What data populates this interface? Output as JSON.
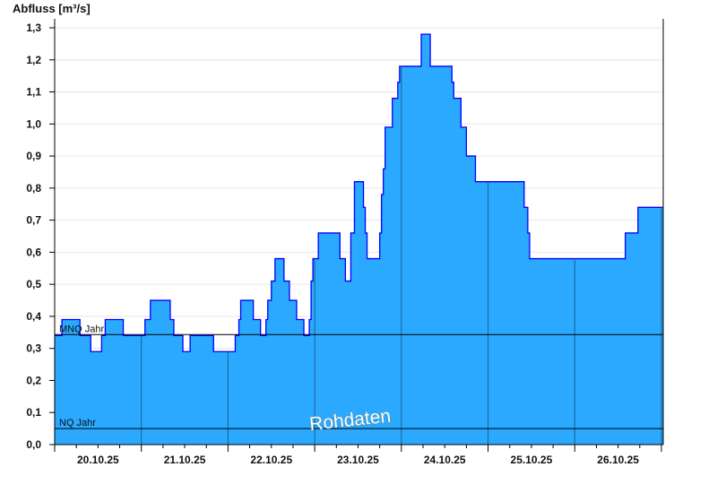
{
  "chart_data": {
    "type": "area",
    "step": true,
    "title": "",
    "ylabel": "Abfluss [m³/s]",
    "xlabel": "",
    "ylim": [
      0,
      1.3
    ],
    "yticks": [
      "0,0",
      "0,1",
      "0,2",
      "0,3",
      "0,4",
      "0,5",
      "0,6",
      "0,7",
      "0,8",
      "0,9",
      "1,0",
      "1,1",
      "1,2",
      "1,3"
    ],
    "xlim": [
      "20.10.25 00:00",
      "27.10.25 00:30"
    ],
    "xtick_labels": [
      "20.10.25",
      "21.10.25",
      "22.10.25",
      "23.10.25",
      "24.10.25",
      "25.10.25",
      "26.10.25"
    ],
    "grid": true,
    "watermark": "Rohdaten",
    "colors": {
      "fill": "#2aa9fe",
      "line": "#0000ff",
      "day_lines": "#1f5f8a",
      "grid": "#e6e6e6",
      "reference": "#000000"
    },
    "reference_lines": [
      {
        "label": "MNQ Jahr",
        "value": 0.343
      },
      {
        "label": "NQ Jahr",
        "value": 0.05
      }
    ],
    "series": [
      {
        "points": [
          [
            "20.10.25 00:00",
            0.34
          ],
          [
            "20.10.25 02:00",
            0.39
          ],
          [
            "20.10.25 07:00",
            0.34
          ],
          [
            "20.10.25 10:00",
            0.29
          ],
          [
            "20.10.25 13:00",
            0.34
          ],
          [
            "20.10.25 14:00",
            0.39
          ],
          [
            "20.10.25 19:00",
            0.34
          ],
          [
            "21.10.25 01:00",
            0.39
          ],
          [
            "21.10.25 02:30",
            0.45
          ],
          [
            "21.10.25 08:00",
            0.39
          ],
          [
            "21.10.25 09:00",
            0.34
          ],
          [
            "21.10.25 11:30",
            0.29
          ],
          [
            "21.10.25 13:30",
            0.34
          ],
          [
            "21.10.25 20:00",
            0.29
          ],
          [
            "22.10.25 02:00",
            0.34
          ],
          [
            "22.10.25 03:00",
            0.39
          ],
          [
            "22.10.25 03:30",
            0.45
          ],
          [
            "22.10.25 07:00",
            0.39
          ],
          [
            "22.10.25 09:00",
            0.34
          ],
          [
            "22.10.25 10:30",
            0.39
          ],
          [
            "22.10.25 11:00",
            0.45
          ],
          [
            "22.10.25 12:00",
            0.51
          ],
          [
            "22.10.25 13:00",
            0.58
          ],
          [
            "22.10.25 15:30",
            0.51
          ],
          [
            "22.10.25 17:00",
            0.45
          ],
          [
            "22.10.25 19:00",
            0.39
          ],
          [
            "22.10.25 21:00",
            0.34
          ],
          [
            "22.10.25 22:30",
            0.39
          ],
          [
            "22.10.25 23:00",
            0.51
          ],
          [
            "22.10.25 23:30",
            0.58
          ],
          [
            "23.10.25 01:00",
            0.66
          ],
          [
            "23.10.25 07:00",
            0.58
          ],
          [
            "23.10.25 08:30",
            0.51
          ],
          [
            "23.10.25 10:00",
            0.66
          ],
          [
            "23.10.25 11:00",
            0.82
          ],
          [
            "23.10.25 13:30",
            0.74
          ],
          [
            "23.10.25 14:00",
            0.66
          ],
          [
            "23.10.25 14:30",
            0.58
          ],
          [
            "23.10.25 18:00",
            0.66
          ],
          [
            "23.10.25 18:30",
            0.78
          ],
          [
            "23.10.25 19:00",
            0.86
          ],
          [
            "23.10.25 19:30",
            0.99
          ],
          [
            "23.10.25 21:30",
            1.08
          ],
          [
            "23.10.25 23:00",
            1.13
          ],
          [
            "23.10.25 23:30",
            1.18
          ],
          [
            "24.10.25 05:30",
            1.28
          ],
          [
            "24.10.25 08:00",
            1.18
          ],
          [
            "24.10.25 14:00",
            1.13
          ],
          [
            "24.10.25 14:30",
            1.08
          ],
          [
            "24.10.25 16:30",
            0.99
          ],
          [
            "24.10.25 18:00",
            0.9
          ],
          [
            "24.10.25 20:30",
            0.82
          ],
          [
            "25.10.25 10:00",
            0.74
          ],
          [
            "25.10.25 11:00",
            0.66
          ],
          [
            "25.10.25 11:30",
            0.58
          ],
          [
            "26.10.25 14:00",
            0.66
          ],
          [
            "26.10.25 17:30",
            0.74
          ],
          [
            "27.10.25 00:30",
            0.74
          ]
        ]
      }
    ]
  }
}
